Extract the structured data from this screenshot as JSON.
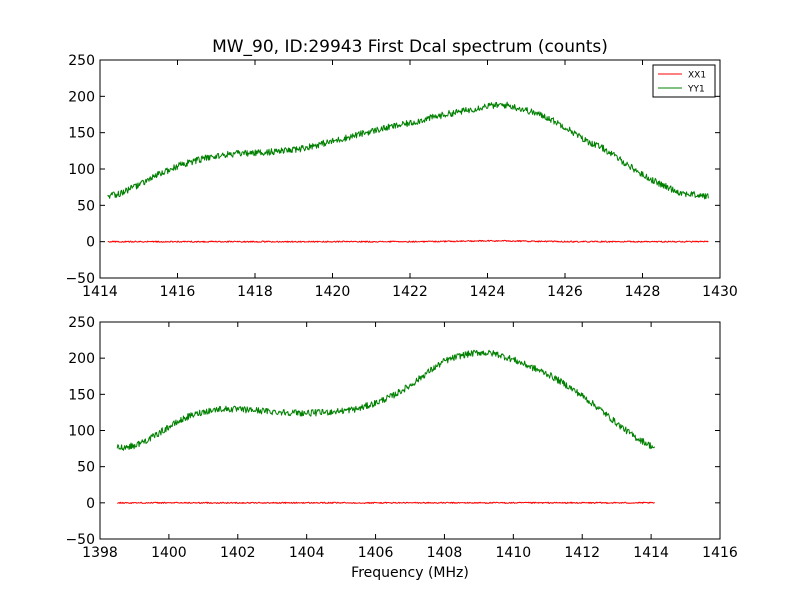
{
  "figure": {
    "title": "MW_90, ID:29943 First Dcal spectrum (counts)",
    "xlabel": "Frequency (MHz)"
  },
  "colors": {
    "XX1": "#ff0000",
    "YY1": "#008000"
  },
  "chart_data": [
    {
      "type": "line",
      "title": "MW_90, ID:29943 First Dcal spectrum (counts)",
      "xlabel": "",
      "ylabel": "",
      "xlim": [
        1414,
        1430
      ],
      "ylim": [
        -50,
        250
      ],
      "xticks": [
        1414,
        1416,
        1418,
        1420,
        1422,
        1424,
        1426,
        1428,
        1430
      ],
      "yticks": [
        -50,
        0,
        50,
        100,
        150,
        200,
        250
      ],
      "xtick_labels": [
        "1414",
        "1416",
        "1418",
        "1420",
        "1422",
        "1424",
        "1426",
        "1428",
        "1430"
      ],
      "ytick_labels": [
        "−50",
        "0",
        "50",
        "100",
        "150",
        "200",
        "250"
      ],
      "legend": {
        "position": "top-right",
        "entries": [
          "XX1",
          "YY1"
        ]
      },
      "series": [
        {
          "name": "XX1",
          "x": [
            1414.2,
            1416,
            1418,
            1420,
            1422,
            1424,
            1424.5,
            1426,
            1428,
            1429.7
          ],
          "values": [
            0,
            0,
            0,
            0,
            0,
            1,
            1,
            0,
            0,
            0
          ]
        },
        {
          "name": "YY1",
          "x": [
            1414.2,
            1414.5,
            1415,
            1415.5,
            1416,
            1416.5,
            1417,
            1417.5,
            1418,
            1418.5,
            1419,
            1419.5,
            1420,
            1420.5,
            1421,
            1421.5,
            1422,
            1422.5,
            1423,
            1423.5,
            1424,
            1424.5,
            1425,
            1425.5,
            1426,
            1426.5,
            1427,
            1427.5,
            1428,
            1428.5,
            1429,
            1429.7
          ],
          "values": [
            62,
            66,
            78,
            92,
            104,
            112,
            118,
            121,
            122,
            124,
            126,
            132,
            138,
            145,
            152,
            158,
            163,
            170,
            176,
            181,
            187,
            188,
            181,
            172,
            158,
            140,
            128,
            110,
            92,
            78,
            67,
            62
          ]
        }
      ]
    },
    {
      "type": "line",
      "title": "",
      "xlabel": "Frequency (MHz)",
      "ylabel": "",
      "xlim": [
        1398,
        1416
      ],
      "ylim": [
        -50,
        250
      ],
      "xticks": [
        1398,
        1400,
        1402,
        1404,
        1406,
        1408,
        1410,
        1412,
        1414,
        1416
      ],
      "yticks": [
        -50,
        0,
        50,
        100,
        150,
        200,
        250
      ],
      "xtick_labels": [
        "1398",
        "1400",
        "1402",
        "1404",
        "1406",
        "1408",
        "1410",
        "1412",
        "1414",
        "1416"
      ],
      "ytick_labels": [
        "−50",
        "0",
        "50",
        "100",
        "150",
        "200",
        "250"
      ],
      "legend": null,
      "series": [
        {
          "name": "XX1",
          "x": [
            1398.5,
            1400,
            1402,
            1404,
            1406,
            1408,
            1410,
            1412,
            1414.1
          ],
          "values": [
            0,
            0,
            0,
            0,
            0,
            0,
            0,
            0,
            0
          ]
        },
        {
          "name": "YY1",
          "x": [
            1398.5,
            1399,
            1399.5,
            1400,
            1400.5,
            1401,
            1401.5,
            1402,
            1402.5,
            1403,
            1403.5,
            1404,
            1404.5,
            1405,
            1405.5,
            1406,
            1406.5,
            1407,
            1407.5,
            1408,
            1408.5,
            1409,
            1409.5,
            1410,
            1410.5,
            1411,
            1411.5,
            1412,
            1412.5,
            1413,
            1413.5,
            1414.1
          ],
          "values": [
            76,
            79,
            90,
            105,
            118,
            126,
            130,
            129,
            128,
            126,
            125,
            124,
            125,
            127,
            130,
            138,
            148,
            162,
            180,
            196,
            204,
            208,
            206,
            198,
            188,
            178,
            164,
            148,
            130,
            110,
            92,
            76
          ]
        }
      ]
    }
  ]
}
